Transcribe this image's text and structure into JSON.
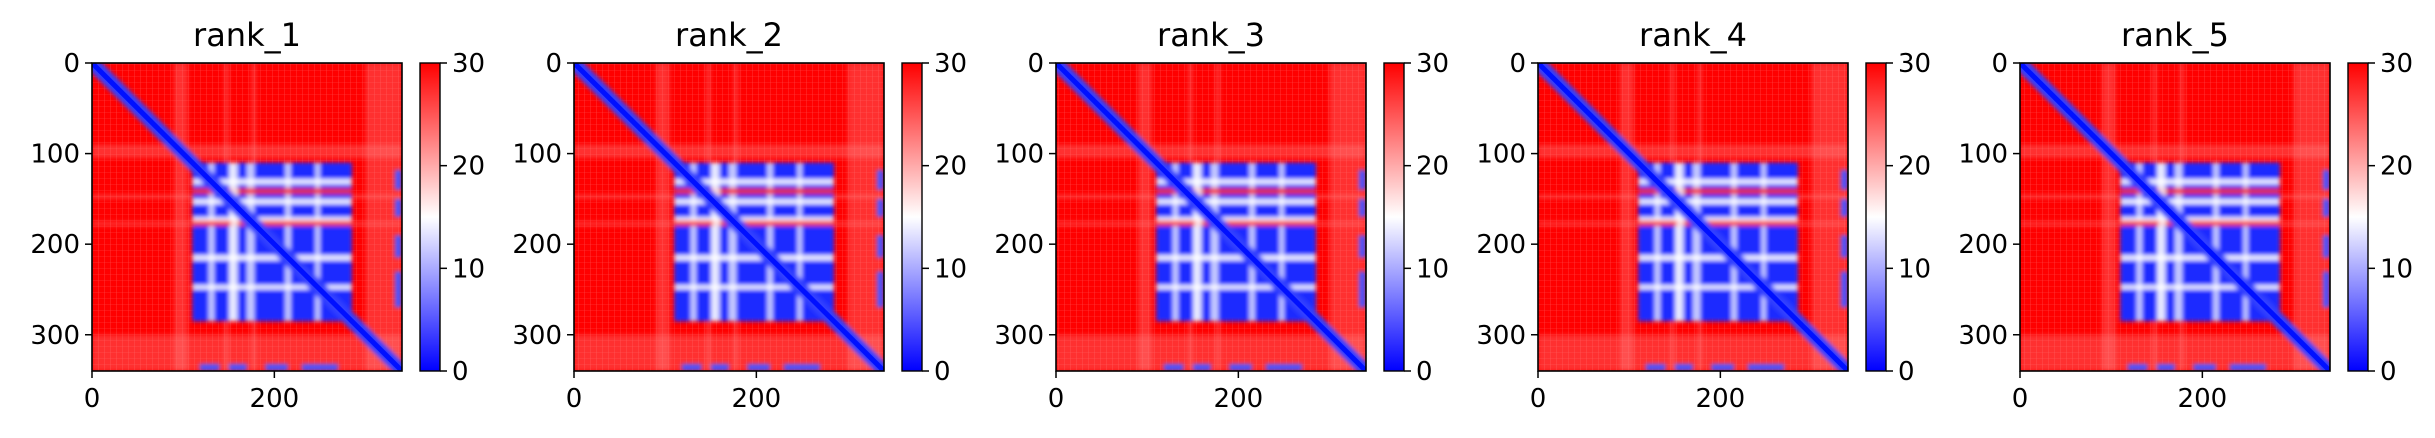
{
  "chart_data": {
    "type": "heatmap",
    "colormap": "bwr",
    "colorbar_range": [
      0,
      30
    ],
    "colorbar_ticks": [
      "0",
      "10",
      "20",
      "30"
    ],
    "x_range": [
      0,
      340
    ],
    "y_range": [
      0,
      340
    ],
    "x_ticks": [
      "0",
      "200"
    ],
    "y_ticks": [
      "0",
      "100",
      "200",
      "300"
    ],
    "panels": [
      {
        "title": "rank_1"
      },
      {
        "title": "rank_2"
      },
      {
        "title": "rank_3"
      },
      {
        "title": "rank_4"
      },
      {
        "title": "rank_5"
      }
    ]
  }
}
